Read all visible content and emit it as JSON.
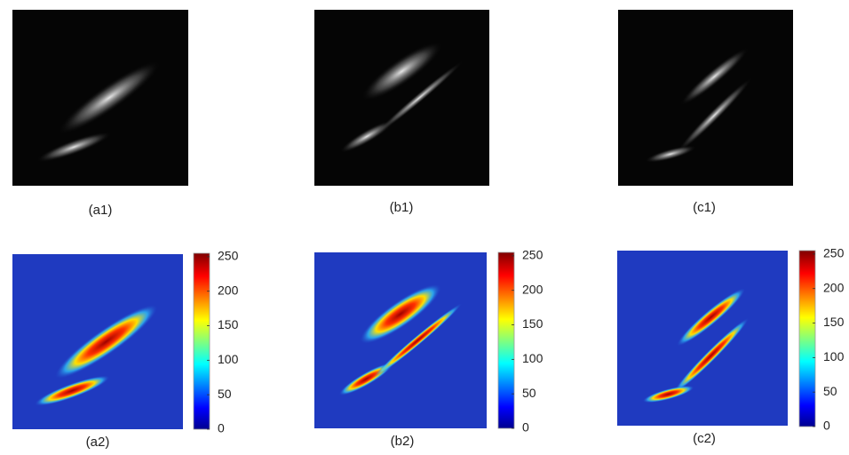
{
  "panels": [
    {
      "label": "(a1)"
    },
    {
      "label": "(b1)"
    },
    {
      "label": "(c1)"
    },
    {
      "label": "(a2)"
    },
    {
      "label": "(b2)"
    },
    {
      "label": "(c2)"
    }
  ],
  "colorbar": {
    "lim": [
      0,
      255
    ],
    "ticks": [
      0,
      50,
      100,
      150,
      200,
      250
    ]
  }
}
